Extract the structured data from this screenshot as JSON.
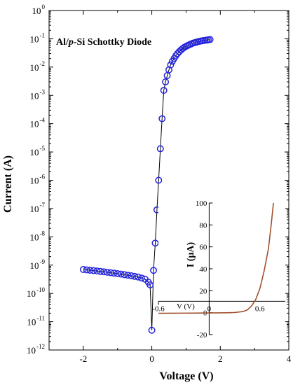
{
  "chart_data": [
    {
      "type": "scatter",
      "title": "",
      "annotation": {
        "prefix": "Al/",
        "italic": "p",
        "suffix": "-Si Schottky Diode"
      },
      "xlabel": "Voltage (V)",
      "ylabel": "Current (A)",
      "xlim": [
        -3,
        4
      ],
      "ylim": [
        1e-12,
        1
      ],
      "y_scale": "log",
      "x_ticks": [
        "-2",
        "0",
        "2",
        "4"
      ],
      "x_tick_values": [
        -2,
        0,
        2,
        4
      ],
      "y_tick_exponents": [
        -12,
        -11,
        -10,
        -9,
        -8,
        -7,
        -6,
        -5,
        -4,
        -3,
        -2,
        -1,
        0
      ],
      "y_tick_base": "10",
      "grid": false,
      "marker": "open-circle",
      "colors": {
        "marker": "#2222dd",
        "line": "#000000"
      },
      "series": [
        {
          "x": [
            -2.0,
            -1.9,
            -1.8,
            -1.7,
            -1.6,
            -1.5,
            -1.4,
            -1.3,
            -1.2,
            -1.1,
            -1.0,
            -0.9,
            -0.8,
            -0.7,
            -0.6,
            -0.5,
            -0.4,
            -0.3,
            -0.2,
            -0.1,
            -0.05,
            0.0,
            0.05,
            0.1,
            0.15,
            0.2,
            0.25,
            0.3,
            0.35,
            0.4,
            0.45,
            0.5,
            0.55,
            0.6,
            0.65,
            0.7,
            0.75,
            0.8,
            0.85,
            0.9,
            0.95,
            1.0,
            1.05,
            1.1,
            1.15,
            1.2,
            1.25,
            1.3,
            1.35,
            1.4,
            1.45,
            1.5,
            1.55,
            1.6,
            1.65,
            1.7
          ],
          "y": [
            7e-10,
            6.8e-10,
            6.6e-10,
            6.4e-10,
            6.2e-10,
            6e-10,
            5.8e-10,
            5.6e-10,
            5.4e-10,
            5.2e-10,
            5e-10,
            4.8e-10,
            4.6e-10,
            4.4e-10,
            4.2e-10,
            4e-10,
            3.8e-10,
            3.5e-10,
            3.2e-10,
            2.5e-10,
            2e-10,
            5e-12,
            6.5e-10,
            6e-09,
            9e-08,
            1e-06,
            1.3e-05,
            0.00015,
            0.0015,
            0.003,
            0.005,
            0.008,
            0.012,
            0.016,
            0.02,
            0.025,
            0.03,
            0.035,
            0.04,
            0.045,
            0.05,
            0.054,
            0.058,
            0.062,
            0.066,
            0.07,
            0.073,
            0.076,
            0.079,
            0.082,
            0.084,
            0.086,
            0.088,
            0.09,
            0.092,
            0.094
          ]
        }
      ]
    },
    {
      "type": "line",
      "ylabel": "I (μA)",
      "x_axis_label": "V (V)",
      "xlim": [
        -0.6,
        0.9
      ],
      "ylim": [
        -20,
        100
      ],
      "x_ticks": [
        "-0.6",
        "0",
        "0.6"
      ],
      "x_tick_values": [
        -0.6,
        0,
        0.6
      ],
      "y_ticks": [
        "-20",
        "0",
        "20",
        "40",
        "60",
        "80",
        "100"
      ],
      "y_tick_values": [
        -20,
        0,
        20,
        40,
        60,
        80,
        100
      ],
      "colors": {
        "line": "#a0522d"
      },
      "series": [
        {
          "x": [
            -0.6,
            -0.4,
            -0.2,
            0.0,
            0.2,
            0.3,
            0.4,
            0.45,
            0.5,
            0.55,
            0.6,
            0.65,
            0.7,
            0.73,
            0.76
          ],
          "y": [
            -0.6,
            -0.5,
            -0.4,
            -0.3,
            -0.1,
            0.2,
            1.0,
            2.5,
            6,
            12,
            22,
            38,
            58,
            78,
            100
          ]
        }
      ]
    }
  ]
}
